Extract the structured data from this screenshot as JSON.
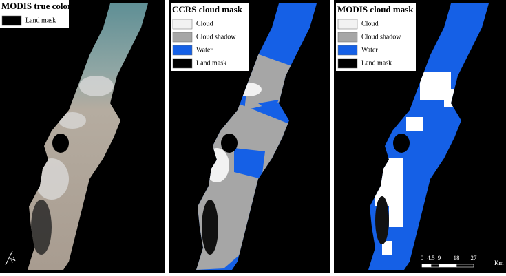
{
  "panels": [
    {
      "title": "MODIS true color",
      "legend": [
        {
          "label": "Land mask",
          "color": "#000000"
        }
      ]
    },
    {
      "title": "CCRS cloud mask",
      "legend": [
        {
          "label": "Cloud",
          "color": "#f2f2f2"
        },
        {
          "label": "Cloud shadow",
          "color": "#a6a6a6"
        },
        {
          "label": "Water",
          "color": "#1560e6"
        },
        {
          "label": "Land mask",
          "color": "#000000"
        }
      ]
    },
    {
      "title": "MODIS cloud mask",
      "legend": [
        {
          "label": "Cloud",
          "color": "#f2f2f2"
        },
        {
          "label": "Cloud shadow",
          "color": "#a6a6a6"
        },
        {
          "label": "Water",
          "color": "#1560e6"
        },
        {
          "label": "Land mask",
          "color": "#000000"
        }
      ]
    }
  ],
  "scale_bar": {
    "labels": [
      "0",
      "4.5",
      "9",
      "18",
      "27"
    ],
    "unit": "Km"
  },
  "north_arrow": "N"
}
